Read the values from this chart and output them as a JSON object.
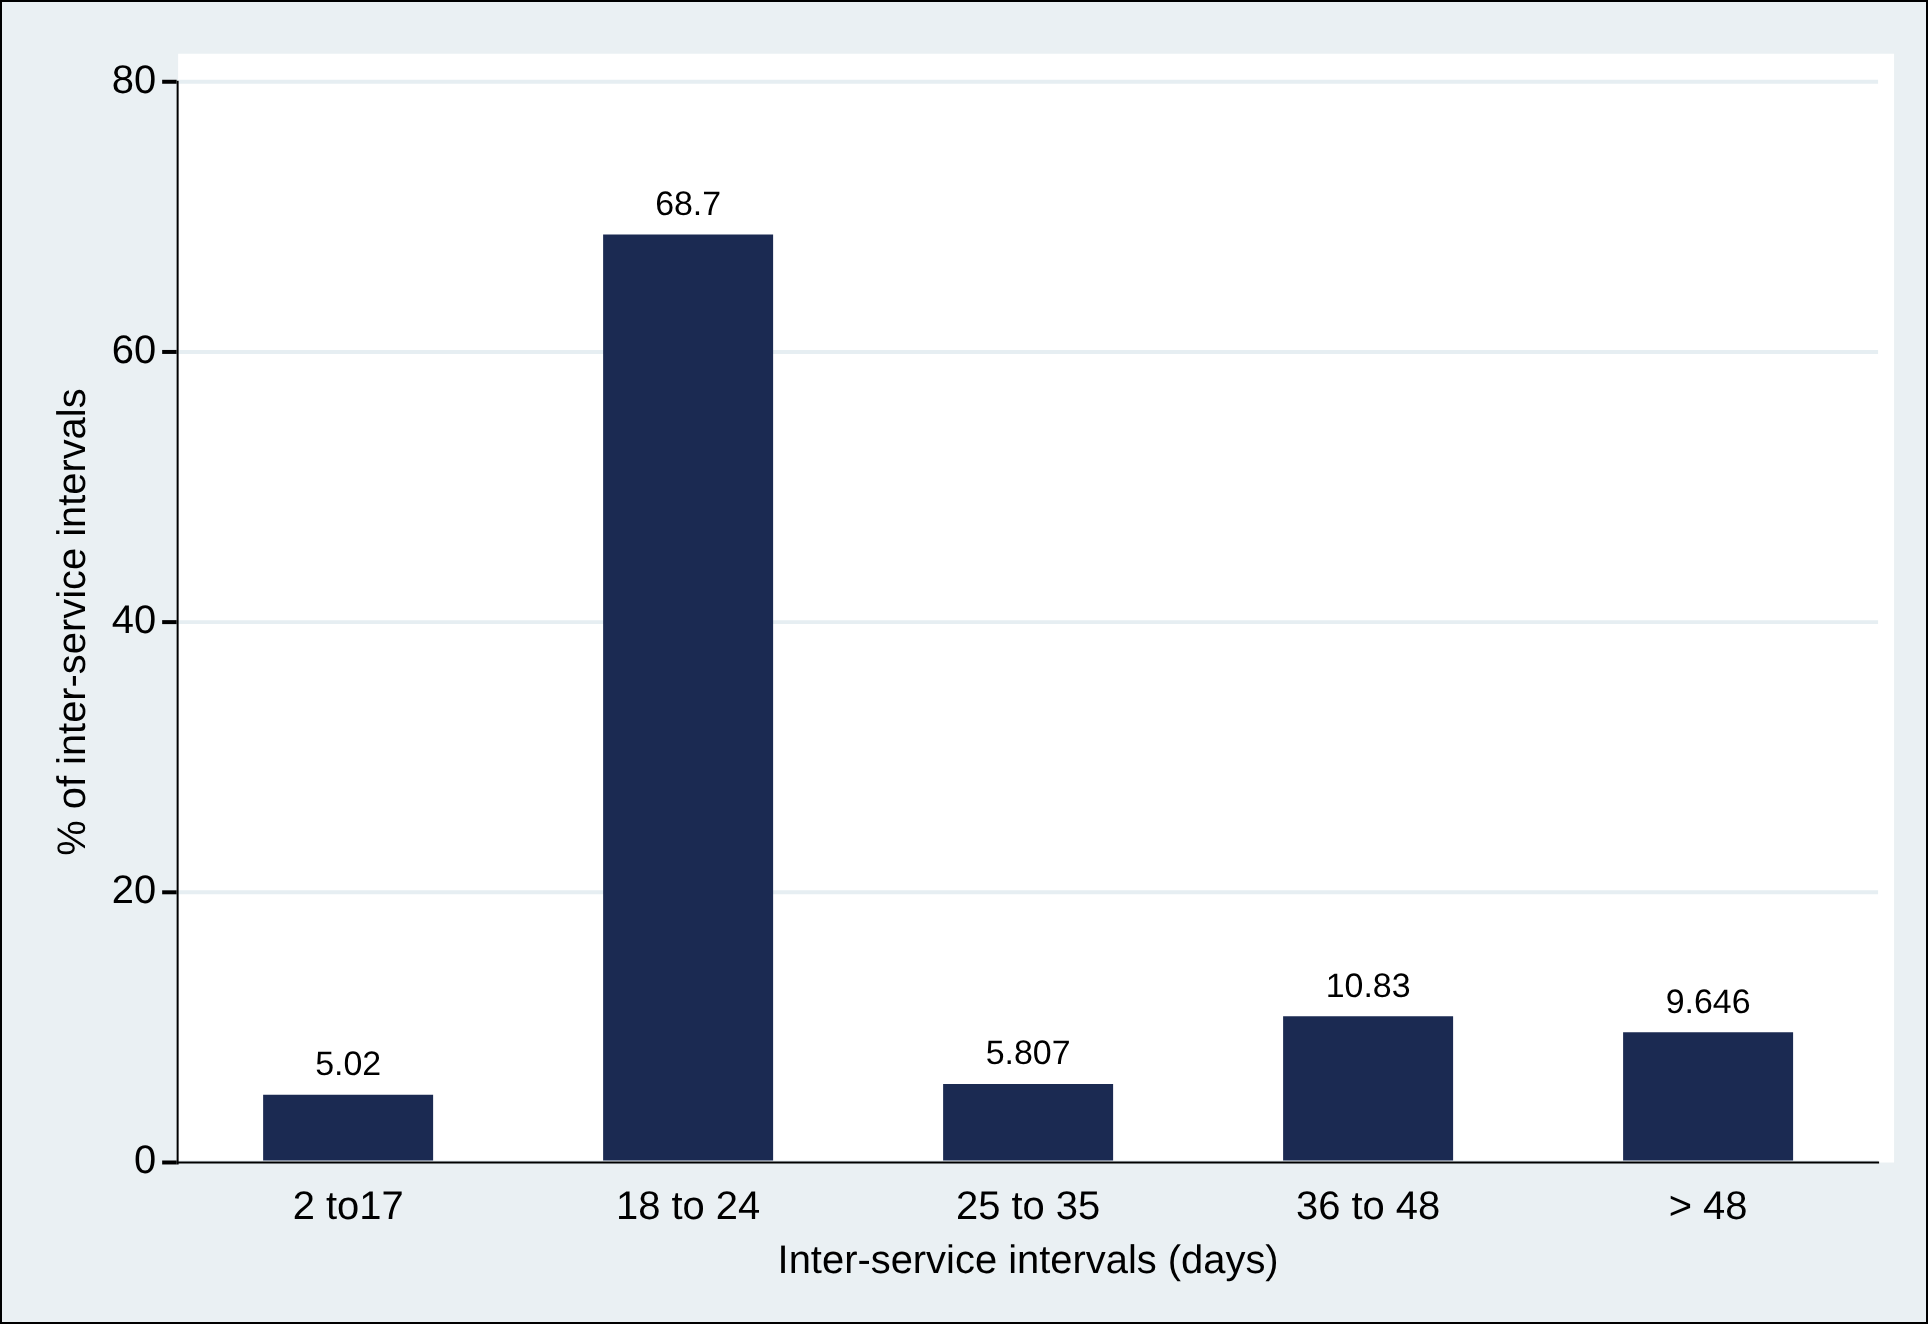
{
  "chart_data": {
    "type": "bar",
    "xlabel": "Inter-service intervals (days)",
    "ylabel": "% of inter-service intervals",
    "categories": [
      "2 to17",
      "18 to 24",
      "25 to 35",
      "36 to 48",
      "> 48"
    ],
    "values": [
      5.02,
      68.7,
      5.807,
      10.83,
      9.646
    ],
    "color": "#1b2a52",
    "ylim": [
      0,
      80
    ],
    "yticks": [
      0,
      20,
      40,
      60,
      80
    ],
    "grid": "y",
    "data_labels": true,
    "legend": false
  }
}
